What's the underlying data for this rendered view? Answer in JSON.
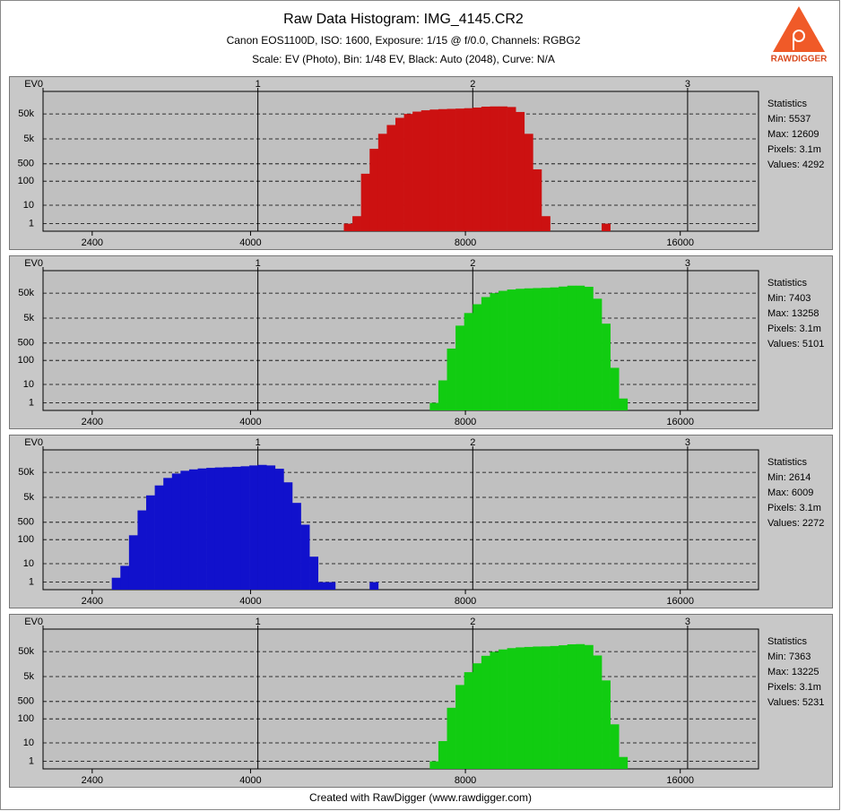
{
  "header": {
    "title": "Raw Data Histogram: IMG_4145.CR2",
    "subtitle": "Canon EOS1100D, ISO: 1600, Exposure: 1/15 @ f/0.0, Channels: RGBG2",
    "settings": "Scale: EV (Photo), Bin: 1/48 EV, Black: Auto (2048), Curve: N/A",
    "logo": "RAWDIGGER"
  },
  "footer": "Created with RawDigger (www.rawdigger.com)",
  "chart_data": [
    {
      "type": "histogram",
      "color": "#cc1111",
      "bins": [
        1.4,
        1.44,
        1.48,
        1.52,
        1.56,
        1.6,
        1.64,
        1.68,
        1.72,
        1.76,
        1.8,
        1.84,
        1.88,
        1.92,
        1.96,
        2.0,
        2.04,
        2.08,
        2.12,
        2.16,
        2.2,
        2.24,
        2.28,
        2.32,
        2.36,
        2.4,
        2.44,
        2.48,
        2.52,
        2.56,
        2.6,
        2.64
      ],
      "counts": [
        1,
        3,
        200,
        2000,
        8000,
        18000,
        35000,
        50000,
        62000,
        70000,
        75000,
        78000,
        80000,
        82000,
        85000,
        90000,
        98000,
        100000,
        100000,
        95000,
        60000,
        8000,
        300,
        3,
        0,
        0,
        0,
        0,
        0,
        0,
        1
      ],
      "xlim": [
        0,
        3.33
      ],
      "x2ticks": [
        {
          "value": 0,
          "label": "EV0"
        },
        1,
        2,
        3
      ],
      "xticks": [
        {
          "value": 0.2288,
          "label": "2400"
        },
        {
          "value": 0.9658,
          "label": "4000"
        },
        {
          "value": 1.9658,
          "label": "8000"
        },
        {
          "value": 2.9658,
          "label": "16000"
        }
      ],
      "ylim": [
        0,
        400000
      ],
      "yscale": "log",
      "yticks": [
        1,
        10,
        100,
        500,
        {
          "value": 5000,
          "label": "5k"
        },
        {
          "value": 50000,
          "label": "50k"
        }
      ],
      "statistics": [
        "Statistics",
        "Min: 5537",
        "Max: 12609",
        "Pixels: 3.1m",
        "Values: 4292"
      ]
    },
    {
      "type": "histogram",
      "color": "#11cc11",
      "bins": [
        1.8,
        1.84,
        1.88,
        1.92,
        1.96,
        2.0,
        2.04,
        2.08,
        2.12,
        2.16,
        2.2,
        2.24,
        2.28,
        2.32,
        2.36,
        2.4,
        2.44,
        2.48,
        2.52,
        2.56,
        2.6,
        2.64,
        2.68,
        2.72
      ],
      "counts": [
        1,
        15,
        300,
        2500,
        8000,
        18000,
        35000,
        50000,
        62000,
        70000,
        75000,
        78000,
        80000,
        82000,
        85000,
        92000,
        100000,
        100000,
        90000,
        30000,
        3000,
        50,
        2
      ],
      "xlim": [
        0,
        3.33
      ],
      "x2ticks": [
        {
          "value": 0,
          "label": "EV0"
        },
        1,
        2,
        3
      ],
      "xticks": [
        {
          "value": 0.2288,
          "label": "2400"
        },
        {
          "value": 0.9658,
          "label": "4000"
        },
        {
          "value": 1.9658,
          "label": "8000"
        },
        {
          "value": 2.9658,
          "label": "16000"
        }
      ],
      "ylim": [
        0,
        400000
      ],
      "yscale": "log",
      "yticks": [
        1,
        10,
        100,
        500,
        {
          "value": 5000,
          "label": "5k"
        },
        {
          "value": 50000,
          "label": "50k"
        }
      ],
      "statistics": [
        "Statistics",
        "Min: 7403",
        "Max: 13258",
        "Pixels: 3.1m",
        "Values: 5101"
      ]
    },
    {
      "type": "histogram",
      "color": "#1111cc",
      "bins": [
        0.32,
        0.36,
        0.4,
        0.44,
        0.48,
        0.52,
        0.56,
        0.6,
        0.64,
        0.68,
        0.72,
        0.76,
        0.8,
        0.84,
        0.88,
        0.92,
        0.96,
        1.0,
        1.04,
        1.08,
        1.12,
        1.16,
        1.2,
        1.24,
        1.28,
        1.32,
        1.36,
        1.4,
        1.44,
        1.48,
        1.52,
        1.56
      ],
      "counts": [
        2,
        8,
        150,
        1500,
        6000,
        15000,
        30000,
        45000,
        58000,
        66000,
        72000,
        76000,
        79000,
        81000,
        84000,
        88000,
        95000,
        100000,
        95000,
        70000,
        20000,
        3000,
        400,
        20,
        1,
        1,
        0,
        0,
        0,
        0,
        1
      ],
      "xlim": [
        0,
        3.33
      ],
      "x2ticks": [
        {
          "value": 0,
          "label": "EV0"
        },
        1,
        2,
        3
      ],
      "xticks": [
        {
          "value": 0.2288,
          "label": "2400"
        },
        {
          "value": 0.9658,
          "label": "4000"
        },
        {
          "value": 1.9658,
          "label": "8000"
        },
        {
          "value": 2.9658,
          "label": "16000"
        }
      ],
      "ylim": [
        0,
        400000
      ],
      "yscale": "log",
      "yticks": [
        1,
        10,
        100,
        500,
        {
          "value": 5000,
          "label": "5k"
        },
        {
          "value": 50000,
          "label": "50k"
        }
      ],
      "statistics": [
        "Statistics",
        "Min: 2614",
        "Max: 6009",
        "Pixels: 3.1m",
        "Values: 2272"
      ]
    },
    {
      "type": "histogram",
      "color": "#11cc11",
      "bins": [
        1.8,
        1.84,
        1.88,
        1.92,
        1.96,
        2.0,
        2.04,
        2.08,
        2.12,
        2.16,
        2.2,
        2.24,
        2.28,
        2.32,
        2.36,
        2.4,
        2.44,
        2.48,
        2.52,
        2.56,
        2.6,
        2.64,
        2.68,
        2.72
      ],
      "counts": [
        1,
        12,
        280,
        2300,
        7500,
        17000,
        34000,
        49000,
        61000,
        69000,
        74000,
        77000,
        80000,
        81000,
        84000,
        90000,
        98000,
        100000,
        92000,
        35000,
        3500,
        60,
        2
      ],
      "xlim": [
        0,
        3.33
      ],
      "x2ticks": [
        {
          "value": 0,
          "label": "EV0"
        },
        1,
        2,
        3
      ],
      "xticks": [
        {
          "value": 0.2288,
          "label": "2400"
        },
        {
          "value": 0.9658,
          "label": "4000"
        },
        {
          "value": 1.9658,
          "label": "8000"
        },
        {
          "value": 2.9658,
          "label": "16000"
        }
      ],
      "ylim": [
        0,
        400000
      ],
      "yscale": "log",
      "yticks": [
        1,
        10,
        100,
        500,
        {
          "value": 5000,
          "label": "5k"
        },
        {
          "value": 50000,
          "label": "50k"
        }
      ],
      "statistics": [
        "Statistics",
        "Min: 7363",
        "Max: 13225",
        "Pixels: 3.1m",
        "Values: 5231"
      ]
    }
  ]
}
